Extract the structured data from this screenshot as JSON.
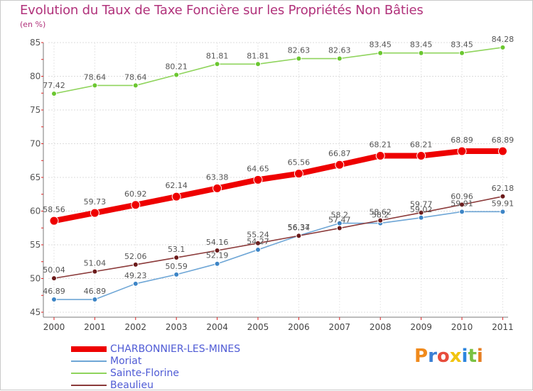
{
  "title": "Evolution du Taux de Taxe Foncière sur les Propriétés Non Bâties",
  "subtitle": "(en %)",
  "logo_text": "Proxiti",
  "chart_data": {
    "type": "line",
    "title": "Evolution du Taux de Taxe Foncière sur les Propriétés Non Bâties",
    "ylabel": "(en %)",
    "xlabel": "",
    "x": [
      "2000",
      "2001",
      "2002",
      "2003",
      "2004",
      "2005",
      "2006",
      "2007",
      "2008",
      "2009",
      "2010",
      "2011"
    ],
    "ylim": [
      45,
      85
    ],
    "yticks": [
      45,
      50,
      55,
      60,
      65,
      70,
      75,
      80,
      85
    ],
    "grid": true,
    "legend_position": "bottom-left",
    "series": [
      {
        "name": "CHARBONNIER-LES-MINES",
        "color": "#ee0000",
        "values": [
          58.56,
          59.73,
          60.92,
          62.14,
          63.38,
          64.65,
          65.56,
          66.87,
          68.21,
          68.21,
          68.89,
          68.89
        ],
        "labels": [
          "58.56",
          "59.73",
          "60.92",
          "62.14",
          "63.38",
          "64.65",
          "65.56",
          "66.87",
          "68.21",
          "68.21",
          "68.89",
          "68.89"
        ]
      },
      {
        "name": "Moriat",
        "color": "#6ea6d6",
        "values": [
          46.89,
          46.89,
          49.23,
          50.59,
          52.19,
          54.27,
          56.37,
          58.2,
          58.2,
          59.02,
          59.91,
          59.91
        ],
        "labels": [
          "46.89",
          "46.89",
          "49.23",
          "50.59",
          "52.19",
          "54.27",
          "56.37",
          "58.2",
          "58.2",
          "59.02",
          "59.91",
          "59.91"
        ]
      },
      {
        "name": "Sainte-Florine",
        "color": "#8fd45c",
        "values": [
          77.42,
          78.64,
          78.64,
          80.21,
          81.81,
          81.81,
          82.63,
          82.63,
          83.45,
          83.45,
          83.45,
          84.28
        ],
        "labels": [
          "77.42",
          "78.64",
          "78.64",
          "80.21",
          "81.81",
          "81.81",
          "82.63",
          "82.63",
          "83.45",
          "83.45",
          "83.45",
          "84.28"
        ]
      },
      {
        "name": "Beaulieu",
        "color": "#8b3a3a",
        "values": [
          50.04,
          51.04,
          52.06,
          53.1,
          54.16,
          55.24,
          56.34,
          57.47,
          58.62,
          59.77,
          60.96,
          62.18
        ],
        "labels": [
          "50.04",
          "51.04",
          "52.06",
          "53.1",
          "54.16",
          "55.24",
          "56.34",
          "57.47",
          "58.62",
          "59.77",
          "60.96",
          "62.18"
        ]
      }
    ]
  }
}
